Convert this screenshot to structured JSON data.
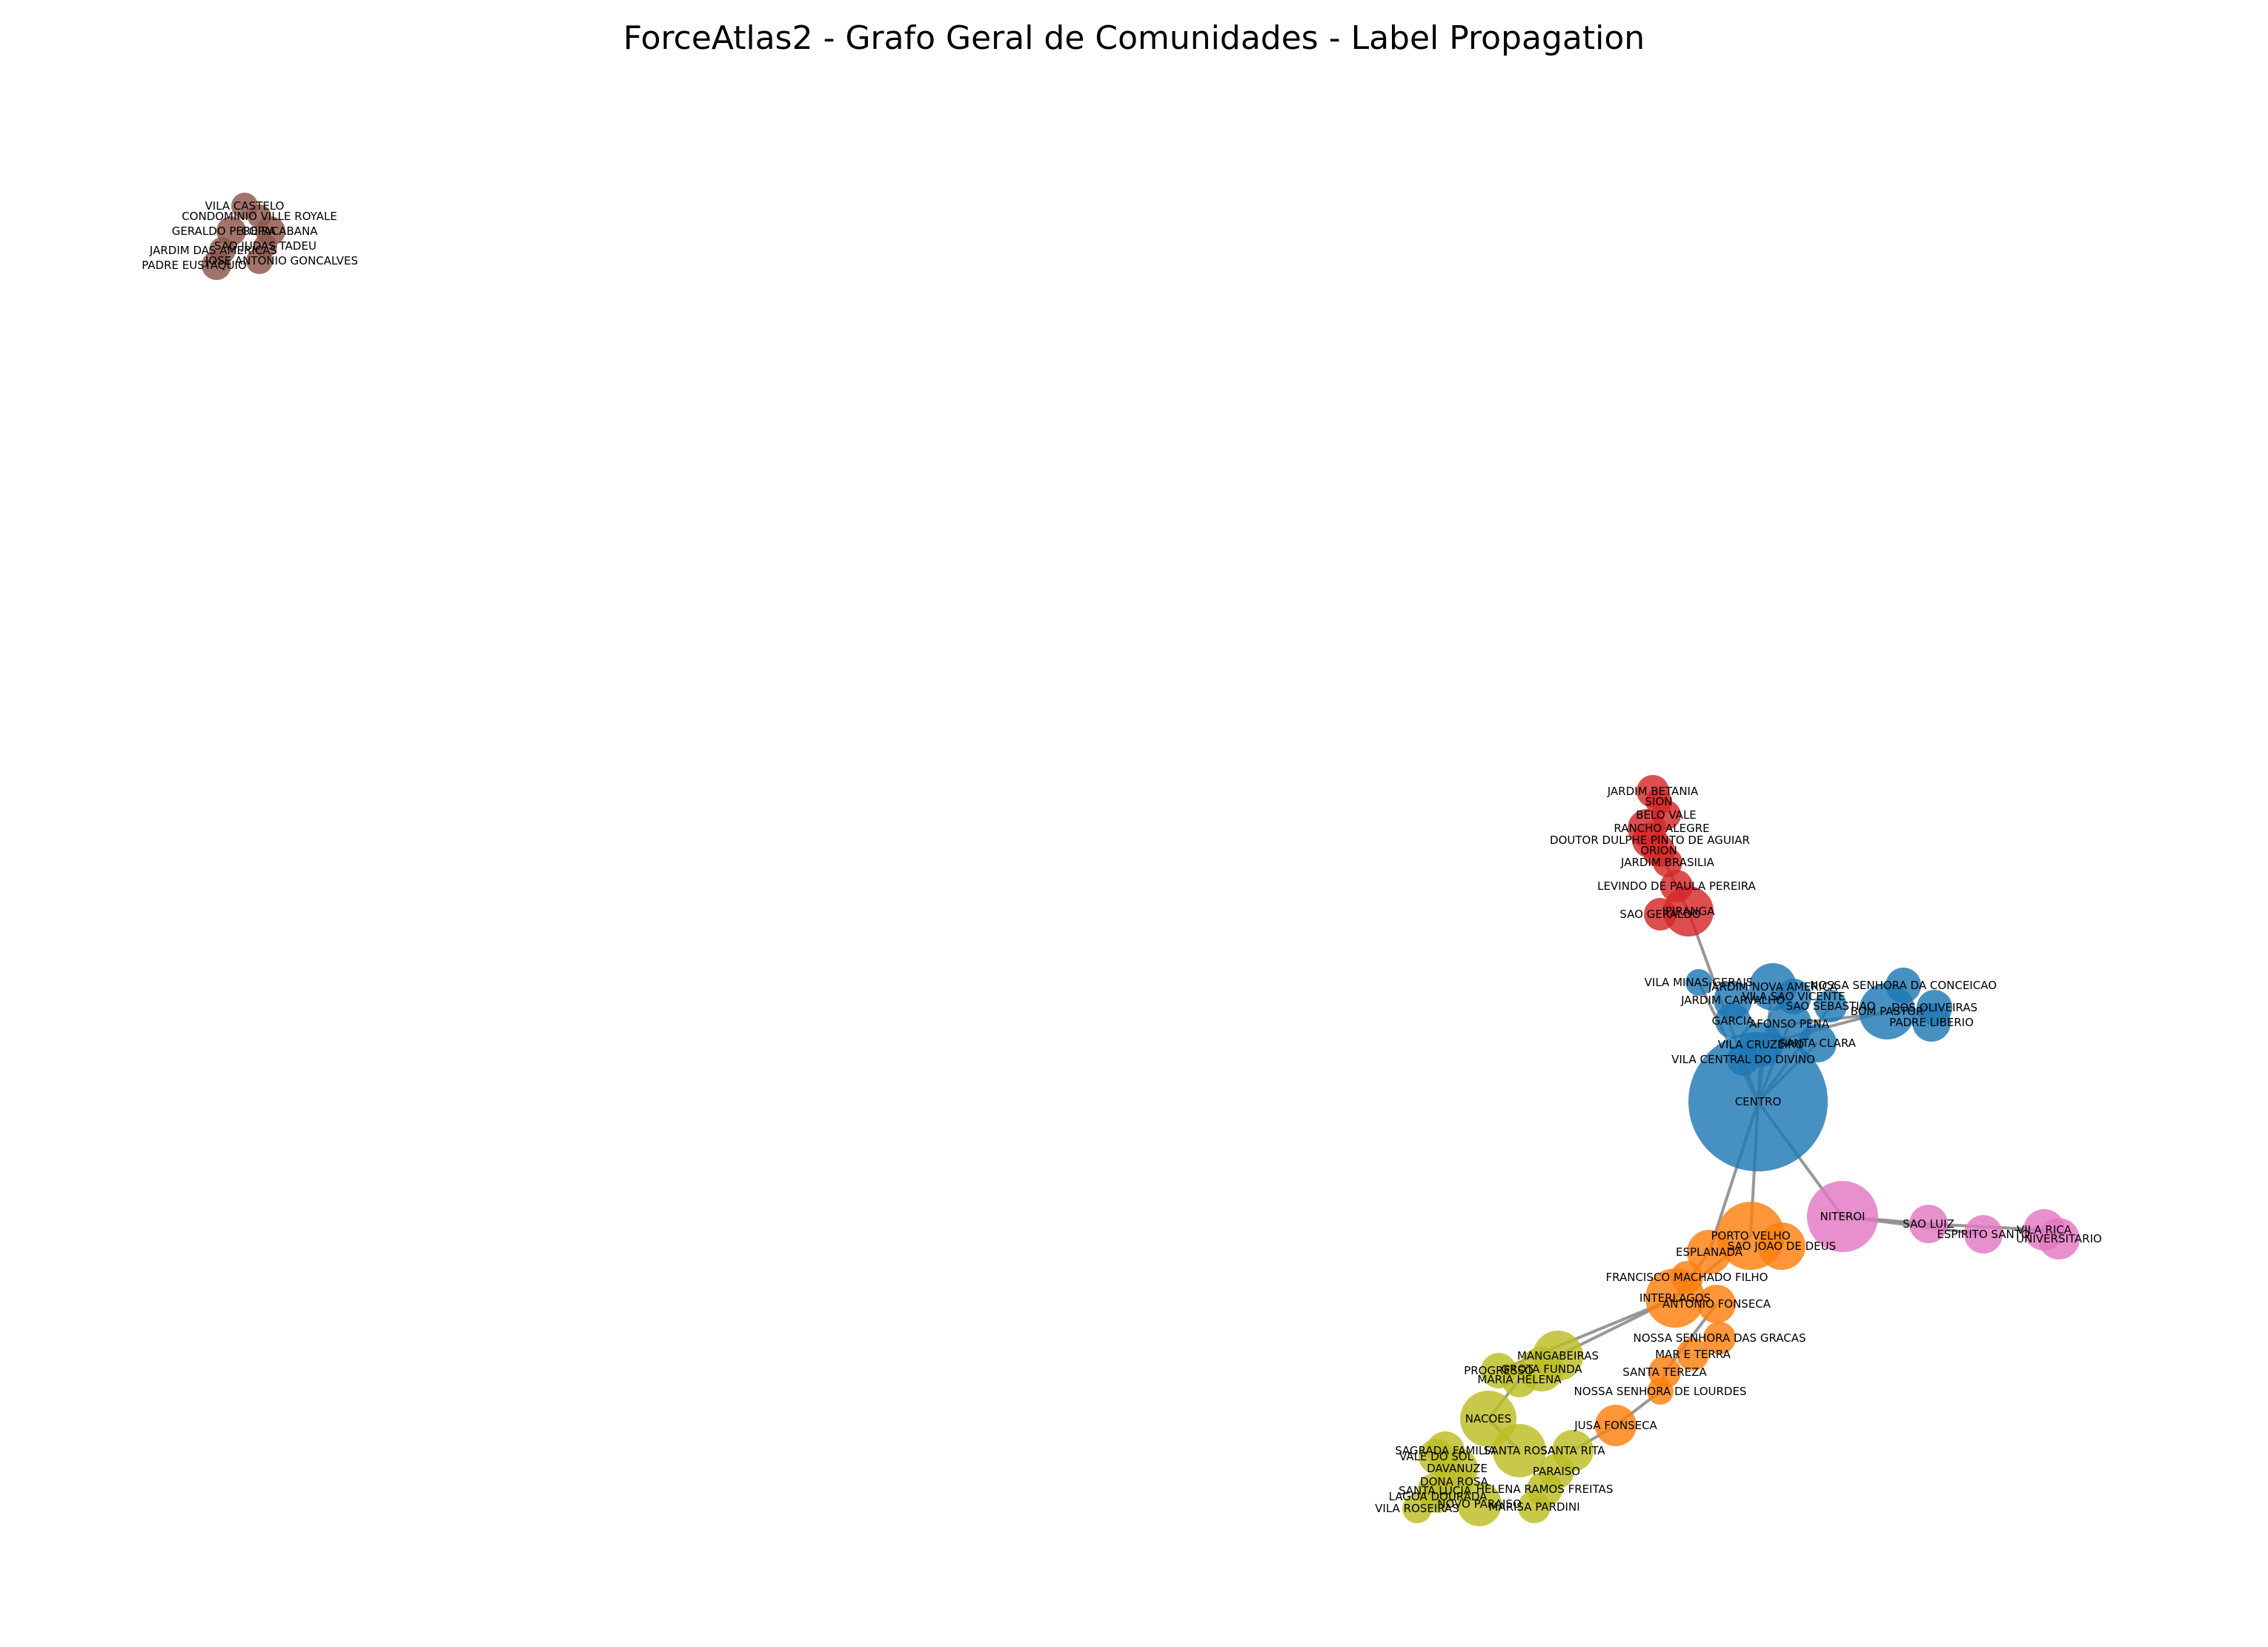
{
  "title": "ForceAtlas2 - Grafo Geral de Comunidades - Label Propagation",
  "communities": [
    {
      "id": "brown",
      "color": "#8c564b"
    },
    {
      "id": "red",
      "color": "#d62728"
    },
    {
      "id": "blue",
      "color": "#1f77b4"
    },
    {
      "id": "pink",
      "color": "#e377c2"
    },
    {
      "id": "orange",
      "color": "#ff7f0e"
    },
    {
      "id": "olive",
      "color": "#bcbd22"
    }
  ],
  "nodes": [
    {
      "id": "vila-castelo",
      "label": "VILA CASTELO",
      "community": "brown"
    },
    {
      "id": "condominio-ville-royale",
      "label": "CONDOMINIO VILLE ROYALE",
      "community": "brown"
    },
    {
      "id": "geraldo-pereira",
      "label": "GERALDO PEREIRA",
      "community": "brown"
    },
    {
      "id": "cidade-jardim-b",
      "label": "COPACABANA",
      "community": "brown"
    },
    {
      "id": "sao-judas-tadeu",
      "label": "SAO JUDAS TADEU",
      "community": "brown"
    },
    {
      "id": "jardim-das-americas",
      "label": "JARDIM DAS AMERICAS",
      "community": "brown"
    },
    {
      "id": "jose-antonio-goncalves",
      "label": "JOSE ANTONIO GONCALVES",
      "community": "brown"
    },
    {
      "id": "padre-eustaquio",
      "label": "PADRE EUSTAQUIO",
      "community": "brown"
    },
    {
      "id": "jardim-betania",
      "label": "JARDIM BETANIA",
      "community": "red"
    },
    {
      "id": "sion",
      "label": "SION",
      "community": "red"
    },
    {
      "id": "belo-vale",
      "label": "BELO VALE",
      "community": "red"
    },
    {
      "id": "rancho-alegre",
      "label": "RANCHO ALEGRE",
      "community": "red"
    },
    {
      "id": "doutor-dulphe",
      "label": "DOUTOR DULPHE PINTO DE AGUIAR",
      "community": "red"
    },
    {
      "id": "orion",
      "label": "ORION",
      "community": "red"
    },
    {
      "id": "jardim-brasilia",
      "label": "JARDIM BRASILIA",
      "community": "red"
    },
    {
      "id": "levindo",
      "label": "LEVINDO DE PAULA PEREIRA",
      "community": "red"
    },
    {
      "id": "sao-geraldo",
      "label": "SAO GERALDO",
      "community": "red"
    },
    {
      "id": "ipiranga",
      "label": "IPIRANGA",
      "community": "red"
    },
    {
      "id": "vila-minas-gerais",
      "label": "VILA MINAS GERAIS",
      "community": "blue"
    },
    {
      "id": "jardim-nova-america",
      "label": "JARDIM NOVA AMERICA",
      "community": "blue"
    },
    {
      "id": "jardim-carvalho",
      "label": "JARDIM CARVALHO",
      "community": "blue"
    },
    {
      "id": "vila-sao-vicente",
      "label": "VILA SAO VICENTE",
      "community": "blue"
    },
    {
      "id": "nossa-senhora-conceicao",
      "label": "NOSSA SENHORA DA CONCEICAO",
      "community": "blue"
    },
    {
      "id": "sao-sebastiao",
      "label": "SAO SEBASTIAO",
      "community": "blue"
    },
    {
      "id": "bom-pastor",
      "label": "BOM PASTOR",
      "community": "blue"
    },
    {
      "id": "dos-oliveiras",
      "label": "DOS OLIVEIRAS",
      "community": "blue"
    },
    {
      "id": "padre-liberio",
      "label": "PADRE LIBERIO",
      "community": "blue"
    },
    {
      "id": "garcia",
      "label": "GARCIA",
      "community": "blue"
    },
    {
      "id": "afonso-pena",
      "label": "AFONSO PENA",
      "community": "blue"
    },
    {
      "id": "santa-clara",
      "label": "SANTA CLARA",
      "community": "blue"
    },
    {
      "id": "vila-cruzeiro",
      "label": "VILA CRUZEIRO",
      "community": "blue"
    },
    {
      "id": "vila-central-divino",
      "label": "VILA CENTRAL DO DIVINO",
      "community": "blue"
    },
    {
      "id": "centro",
      "label": "CENTRO",
      "community": "blue"
    },
    {
      "id": "niteroi",
      "label": "NITEROI",
      "community": "pink"
    },
    {
      "id": "sao-luiz",
      "label": "SAO LUIZ",
      "community": "pink"
    },
    {
      "id": "espirito-santo",
      "label": "ESPIRITO SANTO",
      "community": "pink"
    },
    {
      "id": "vila-rica",
      "label": "VILA RICA",
      "community": "pink"
    },
    {
      "id": "universitario",
      "label": "UNIVERSITARIO",
      "community": "pink"
    },
    {
      "id": "porto-velho",
      "label": "PORTO VELHO",
      "community": "orange"
    },
    {
      "id": "sao-joao-de-deus",
      "label": "SAO JOAO DE DEUS",
      "community": "orange"
    },
    {
      "id": "esplanada",
      "label": "ESPLANADA",
      "community": "orange"
    },
    {
      "id": "francisco-machado",
      "label": "FRANCISCO MACHADO FILHO",
      "community": "orange"
    },
    {
      "id": "interlagos",
      "label": "INTERLAGOS",
      "community": "orange"
    },
    {
      "id": "antonio-fonseca",
      "label": "ANTONIO FONSECA",
      "community": "orange"
    },
    {
      "id": "nossa-senhora-gracas",
      "label": "NOSSA SENHORA DAS GRACAS",
      "community": "orange"
    },
    {
      "id": "mar-e-terra",
      "label": "MAR E TERRA",
      "community": "orange"
    },
    {
      "id": "santa-tereza",
      "label": "SANTA TEREZA",
      "community": "orange"
    },
    {
      "id": "nossa-senhora-lourdes",
      "label": "NOSSA SENHORA DE LOURDES",
      "community": "orange"
    },
    {
      "id": "jusa-fonseca",
      "label": "JUSA FONSECA",
      "community": "orange"
    },
    {
      "id": "mangabeiras",
      "label": "MANGABEIRAS",
      "community": "olive"
    },
    {
      "id": "progresso",
      "label": "PROGRESSO",
      "community": "olive"
    },
    {
      "id": "grota-funda",
      "label": "GROTA FUNDA",
      "community": "olive"
    },
    {
      "id": "maria-helena",
      "label": "MARIA HELENA",
      "community": "olive"
    },
    {
      "id": "nacoes",
      "label": "NACOES",
      "community": "olive"
    },
    {
      "id": "sagrada-familia",
      "label": "SAGRADA FAMILIA",
      "community": "olive"
    },
    {
      "id": "santa-rosa",
      "label": "SANTA ROSA",
      "community": "olive"
    },
    {
      "id": "santa-rita",
      "label": "SANTA RITA",
      "community": "olive"
    },
    {
      "id": "vale-do-sol",
      "label": "VALE DO SOL",
      "community": "olive"
    },
    {
      "id": "davanuze",
      "label": "DAVANUZE",
      "community": "olive"
    },
    {
      "id": "paraiso",
      "label": "PARAISO",
      "community": "olive"
    },
    {
      "id": "dona-rosa",
      "label": "DONA ROSA",
      "community": "olive"
    },
    {
      "id": "santa-lucia",
      "label": "SANTA LUCIA",
      "community": "olive"
    },
    {
      "id": "helena-ramos-freitas",
      "label": "HELENA RAMOS FREITAS",
      "community": "olive"
    },
    {
      "id": "lagoa-dourada",
      "label": "LAGOA DOURADA",
      "community": "olive"
    },
    {
      "id": "novo-paraiso",
      "label": "NOVO PARAISO",
      "community": "olive"
    },
    {
      "id": "marisa-pardini",
      "label": "MARISA PARDINI",
      "community": "olive"
    },
    {
      "id": "vila-roseiras",
      "label": "VILA ROSEIRAS",
      "community": "olive"
    }
  ],
  "edges": [
    [
      "centro",
      "porto-velho"
    ],
    [
      "centro",
      "esplanada"
    ],
    [
      "centro",
      "niteroi"
    ],
    [
      "centro",
      "vila-cruzeiro"
    ],
    [
      "centro",
      "afonso-pena"
    ],
    [
      "centro",
      "santa-clara"
    ],
    [
      "centro",
      "sao-sebastiao"
    ],
    [
      "centro",
      "jardim-nova-america"
    ],
    [
      "centro",
      "vila-minas-gerais"
    ],
    [
      "centro",
      "ipiranga"
    ],
    [
      "vila-cruzeiro",
      "bom-pastor"
    ],
    [
      "afonso-pena",
      "dos-oliveiras"
    ],
    [
      "niteroi",
      "sao-luiz"
    ],
    [
      "niteroi",
      "espirito-santo"
    ],
    [
      "sao-luiz",
      "vila-rica"
    ],
    [
      "porto-velho",
      "interlagos"
    ],
    [
      "esplanada",
      "interlagos"
    ],
    [
      "interlagos",
      "mangabeiras"
    ],
    [
      "interlagos",
      "progresso"
    ],
    [
      "antonio-fonseca",
      "santa-tereza"
    ],
    [
      "santa-tereza",
      "nossa-senhora-lourdes"
    ],
    [
      "nossa-senhora-lourdes",
      "jusa-fonseca"
    ],
    [
      "jusa-fonseca",
      "santa-rita"
    ],
    [
      "nacoes",
      "maria-helena"
    ],
    [
      "nacoes",
      "santa-rosa"
    ],
    [
      "ipiranga",
      "levindo"
    ],
    [
      "levindo",
      "orion"
    ]
  ]
}
